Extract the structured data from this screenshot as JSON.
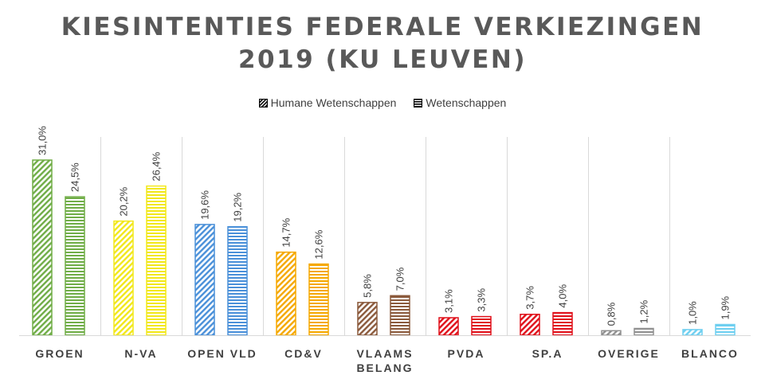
{
  "chart_data": {
    "type": "bar",
    "title_lines": [
      "KIESINTENTIES FEDERALE VERKIEZINGEN",
      "2019 (KU LEUVEN)"
    ],
    "categories": [
      {
        "label_lines": [
          "GROEN"
        ],
        "color": "#70ad47"
      },
      {
        "label_lines": [
          "N-VA"
        ],
        "color": "#f2e81b"
      },
      {
        "label_lines": [
          "OPEN VLD"
        ],
        "color": "#4a90d9"
      },
      {
        "label_lines": [
          "CD&V"
        ],
        "color": "#f5a800"
      },
      {
        "label_lines": [
          "VLAAMS",
          "BELANG"
        ],
        "color": "#8b5a3c"
      },
      {
        "label_lines": [
          "PVDA"
        ],
        "color": "#e0101a"
      },
      {
        "label_lines": [
          "SP.A"
        ],
        "color": "#e0101a"
      },
      {
        "label_lines": [
          "OVERIGE"
        ],
        "color": "#909090"
      },
      {
        "label_lines": [
          "BLANCO"
        ],
        "color": "#6ecff0"
      }
    ],
    "series": [
      {
        "name": "Humane Wetenschappen",
        "pattern": "diagonal",
        "values": [
          31.0,
          20.2,
          19.6,
          14.7,
          5.8,
          3.1,
          3.7,
          0.8,
          1.0
        ],
        "labels": [
          "31,0%",
          "20,2%",
          "19,6%",
          "14,7%",
          "5,8%",
          "3,1%",
          "3,7%",
          "0,8%",
          "1,0%"
        ]
      },
      {
        "name": "Wetenschappen",
        "pattern": "horizontal",
        "values": [
          24.5,
          26.4,
          19.2,
          12.6,
          7.0,
          3.3,
          4.0,
          1.2,
          1.9
        ],
        "labels": [
          "24,5%",
          "26,4%",
          "19,2%",
          "12,6%",
          "7,0%",
          "3,3%",
          "4,0%",
          "1,2%",
          "1,9%"
        ]
      }
    ],
    "ylim": [
      0,
      31.0
    ],
    "legend_position": "top"
  }
}
